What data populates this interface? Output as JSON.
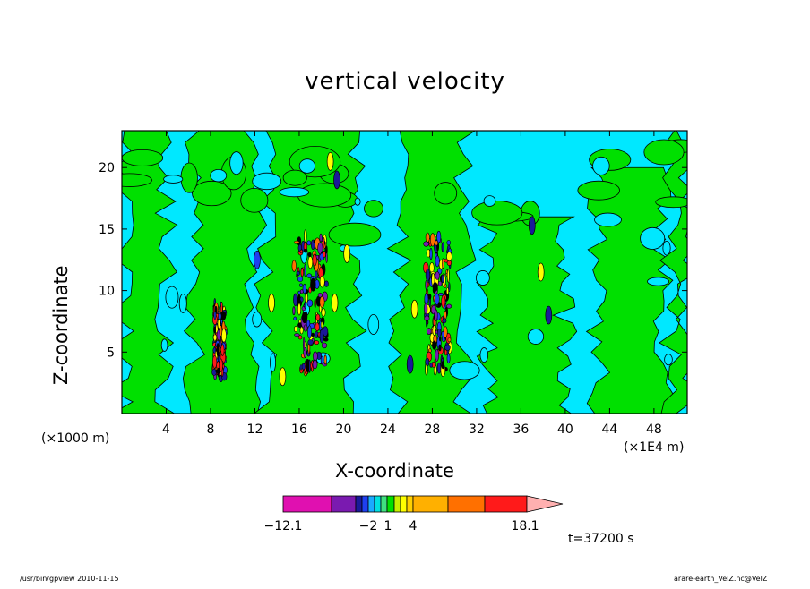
{
  "chart_data": {
    "type": "heatmap",
    "title": "vertical velocity",
    "xlabel": "X-coordinate",
    "ylabel": "Z-coordinate",
    "x_unit_left": "(×1000 m)",
    "x_unit_right": "(×1E4 m)",
    "xlim": [
      0,
      51
    ],
    "ylim": [
      0,
      23
    ],
    "x_ticks": [
      4,
      8,
      12,
      16,
      20,
      24,
      28,
      32,
      36,
      40,
      44,
      48
    ],
    "y_ticks": [
      5,
      10,
      15,
      20
    ],
    "colorbar": {
      "labels": [
        {
          "value": -12.1,
          "text": "−12.1"
        },
        {
          "value": -2,
          "text": "−2"
        },
        {
          "value": 1,
          "text": "1"
        },
        {
          "value": 4,
          "text": "4"
        },
        {
          "value": 18.1,
          "text": "18.1"
        }
      ],
      "colors": [
        "#e010b0",
        "#7a1ab0",
        "#1a1a9a",
        "#1f3ff0",
        "#1aaaff",
        "#00e0e0",
        "#40e080",
        "#00e000",
        "#c8f000",
        "#ffff00",
        "#ffd000",
        "#ffb000",
        "#ff7000",
        "#ff1a1a",
        "#ff8080",
        "#ffb0b0"
      ]
    },
    "time_label": "t=37200 s",
    "colors": {
      "background_cyan": "#00e8ff",
      "background_green": "#00e000"
    }
  },
  "footer": {
    "left": "/usr/bin/gpview   2010-11-15",
    "right": "arare-earth_VelZ.nc@VelZ"
  }
}
